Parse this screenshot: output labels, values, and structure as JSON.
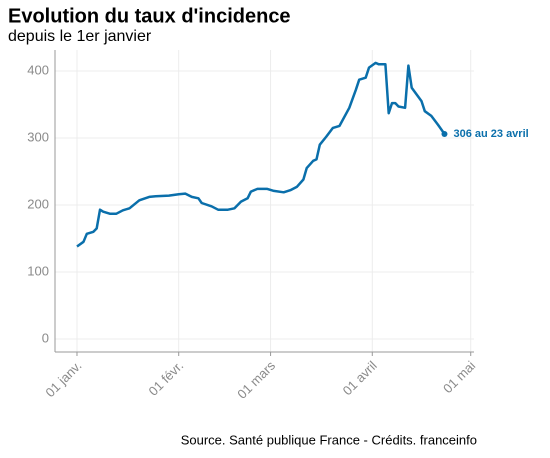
{
  "chart_data": {
    "type": "line",
    "title": "Evolution du taux d'incidence",
    "subtitle": "depuis le 1er janvier",
    "source": "Source. Santé publique France - Crédits. franceinfo",
    "annotation": "306 au 23 avril",
    "x": [
      0,
      2,
      3,
      5,
      6,
      7,
      8,
      10,
      12,
      14,
      16,
      19,
      22,
      24,
      28,
      31,
      33,
      35,
      37,
      38,
      41,
      43,
      46,
      48,
      50,
      52,
      53,
      55,
      58,
      60,
      63,
      65,
      67,
      69,
      70,
      72,
      73,
      74,
      76,
      78,
      80,
      83,
      85,
      86,
      88,
      89,
      91,
      92,
      94,
      95,
      96,
      97,
      98,
      100,
      101,
      102,
      105,
      106,
      108,
      110,
      112
    ],
    "series": [
      {
        "name": "taux d'incidence",
        "color": "#0a6fab",
        "values": [
          138,
          145,
          157,
          160,
          165,
          193,
          190,
          187,
          187,
          192,
          195,
          207,
          212,
          213,
          214,
          216,
          217,
          212,
          210,
          203,
          198,
          193,
          193,
          195,
          205,
          210,
          220,
          224,
          224,
          221,
          219,
          222,
          227,
          238,
          255,
          266,
          268,
          290,
          302,
          315,
          318,
          345,
          372,
          387,
          390,
          405,
          412,
          410,
          410,
          337,
          352,
          352,
          347,
          345,
          408,
          375,
          355,
          340,
          333,
          320,
          306
        ]
      }
    ],
    "xlim": [
      -6.7,
      121
    ],
    "xticks": [
      {
        "value": 0,
        "label": "01 janv."
      },
      {
        "value": 31,
        "label": "01 févr."
      },
      {
        "value": 59,
        "label": "01 mars"
      },
      {
        "value": 90,
        "label": "01 avril"
      },
      {
        "value": 120,
        "label": "01 mai"
      }
    ],
    "ylim": [
      -19.4,
      431.3
    ],
    "yticks": [
      0,
      100,
      200,
      300,
      400
    ],
    "grid": true
  }
}
